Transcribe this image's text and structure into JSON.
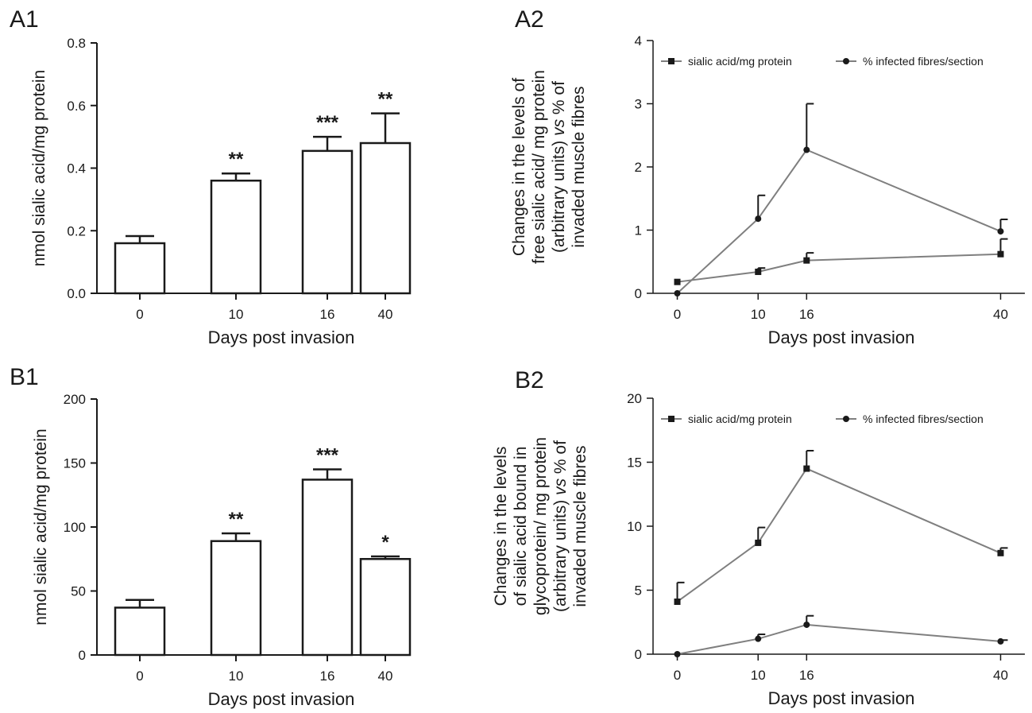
{
  "panels": {
    "a1": "A1",
    "a2": "A2",
    "b1": "B1",
    "b2": "B2"
  },
  "chart_data": [
    {
      "id": "a1",
      "type": "bar",
      "xlabel": "Days post invasion",
      "ylabel": "nmol sialic acid/mg protein",
      "categories": [
        "0",
        "10",
        "16",
        "40"
      ],
      "values": [
        0.16,
        0.36,
        0.455,
        0.48
      ],
      "errors": [
        0.023,
        0.023,
        0.045,
        0.095
      ],
      "significance": [
        "",
        "**",
        "***",
        "**"
      ],
      "ylim": [
        0,
        0.8
      ],
      "yticks": [
        0,
        0.2,
        0.4,
        0.6,
        0.8
      ],
      "ytick_labels": [
        "0.0",
        "0.2",
        "0.4",
        "0.6",
        "0.8"
      ],
      "bar_fill": "#ffffff",
      "bar_stroke": "#1a1a1a"
    },
    {
      "id": "a2",
      "type": "line",
      "xlabel": "Days post invasion",
      "ylabel_lines": [
        "Changes in the levels of",
        "free sialic acid/ mg protein",
        "(arbitrary units) vs % of",
        "invaded muscle fibres"
      ],
      "x": [
        0,
        10,
        16,
        40
      ],
      "xtick_labels": [
        "0",
        "10",
        "16",
        "40"
      ],
      "ylim": [
        0,
        4
      ],
      "yticks": [
        0,
        1,
        2,
        3,
        4
      ],
      "ytick_labels": [
        "0",
        "1",
        "2",
        "3",
        "4"
      ],
      "legend_position": "top",
      "line_color": "#7f7f7f",
      "marker_color": "#1a1a1a",
      "series": [
        {
          "name": "sialic acid/mg protein",
          "marker": "square",
          "values": [
            0.18,
            0.34,
            0.52,
            0.62
          ],
          "errors": [
            0,
            0.06,
            0.12,
            0.24
          ]
        },
        {
          "name": "% infected fibres/section",
          "marker": "circle",
          "values": [
            0.0,
            1.18,
            2.27,
            0.98
          ],
          "errors": [
            0,
            0.37,
            0.73,
            0.19
          ]
        }
      ]
    },
    {
      "id": "b1",
      "type": "bar",
      "xlabel": "Days post invasion",
      "ylabel": "nmol sialic acid/mg protein",
      "categories": [
        "0",
        "10",
        "16",
        "40"
      ],
      "values": [
        37,
        89,
        137,
        75
      ],
      "errors": [
        6,
        6,
        8,
        2
      ],
      "significance": [
        "",
        "**",
        "***",
        "*"
      ],
      "ylim": [
        0,
        200
      ],
      "yticks": [
        0,
        50,
        100,
        150,
        200
      ],
      "ytick_labels": [
        "0",
        "50",
        "100",
        "150",
        "200"
      ],
      "bar_fill": "#ffffff",
      "bar_stroke": "#1a1a1a"
    },
    {
      "id": "b2",
      "type": "line",
      "xlabel": "Days post invasion",
      "ylabel_lines": [
        "Changes in the levels",
        "of sialic acid bound in",
        "glycoprotein/ mg protein",
        "(arbitrary units) vs % of",
        "invaded muscle fibres"
      ],
      "x": [
        0,
        10,
        16,
        40
      ],
      "xtick_labels": [
        "0",
        "10",
        "16",
        "40"
      ],
      "ylim": [
        0,
        20
      ],
      "yticks": [
        0,
        5,
        10,
        15,
        20
      ],
      "ytick_labels": [
        "0",
        "5",
        "10",
        "15",
        "20"
      ],
      "legend_position": "top",
      "line_color": "#7f7f7f",
      "marker_color": "#1a1a1a",
      "series": [
        {
          "name": "sialic acid/mg protein",
          "marker": "square",
          "values": [
            4.1,
            8.7,
            14.5,
            7.9
          ],
          "errors": [
            1.5,
            1.2,
            1.4,
            0.4
          ]
        },
        {
          "name": "% infected fibres/section",
          "marker": "circle",
          "values": [
            0.0,
            1.2,
            2.3,
            1.0
          ],
          "errors": [
            0,
            0.35,
            0.7,
            0.1
          ]
        }
      ]
    }
  ]
}
